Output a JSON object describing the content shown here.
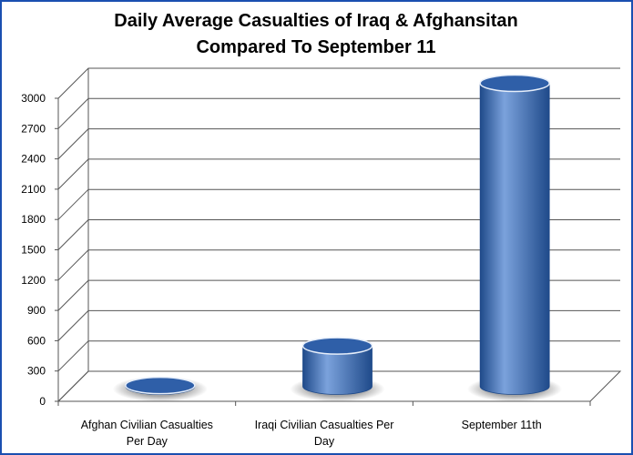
{
  "chart_data": {
    "type": "bar",
    "style": "3d-cylinder",
    "title": "Daily Average Casualties of Iraq & Afghansitan Compared To September 11",
    "title_lines": [
      "Daily Average Casualties of Iraq & Afghansitan",
      "Compared To September 11"
    ],
    "categories": [
      "Afghan Civilian Casualties Per Day",
      "Iraqi Civilian  Casualties Per Day",
      "September 11th"
    ],
    "category_lines": [
      [
        "Afghan Civilian Casualties",
        "Per Day"
      ],
      [
        "Iraqi Civilian  Casualties Per",
        "Day"
      ],
      [
        "September 11th"
      ]
    ],
    "values": [
      8,
      400,
      3000
    ],
    "ylim": [
      0,
      3000
    ],
    "yticks": [
      0,
      300,
      600,
      900,
      1200,
      1500,
      1800,
      2100,
      2400,
      2700,
      3000
    ],
    "grid": true,
    "legend": "none",
    "xlabel": "",
    "ylabel": "",
    "colors": {
      "bar": "#3d6fb8",
      "bar_dark": "#1f4a8a",
      "bar_light": "#7ba2dc",
      "top": "#2f5fa8",
      "border": "#1a4fb0",
      "grid": "#555555"
    }
  }
}
